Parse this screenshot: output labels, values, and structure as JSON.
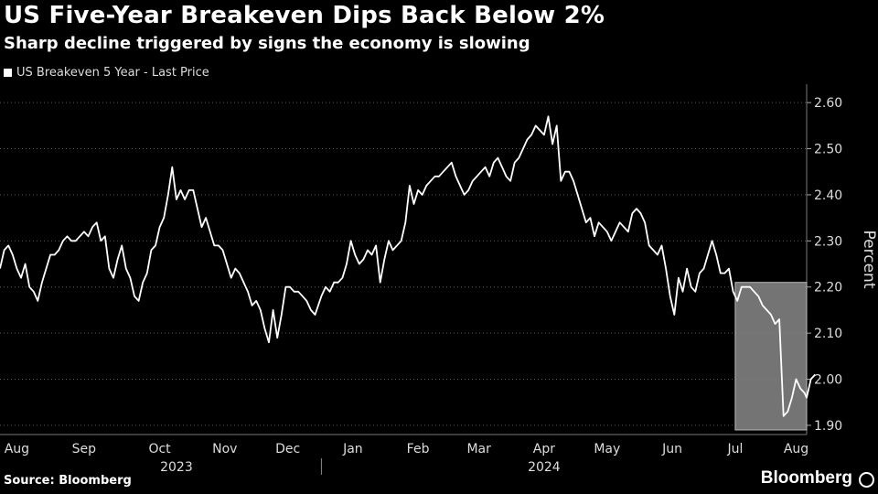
{
  "header": {
    "title": "US Five-Year Breakeven Dips Back Below 2%",
    "subtitle": "Sharp decline triggered by signs the economy is slowing"
  },
  "footer": {
    "source": "Source: Bloomberg",
    "brand": "Bloomberg"
  },
  "colors": {
    "background": "#000000",
    "line": "#ffffff",
    "highlight": "#888888",
    "grid": "#555555"
  },
  "chart_data": {
    "type": "line",
    "title": "US Five-Year Breakeven Dips Back Below 2%",
    "subtitle": "Sharp decline triggered by signs the economy is slowing",
    "ylabel": "Percent",
    "ylim": [
      1.88,
      2.64
    ],
    "yticks": [
      "2.60",
      "2.50",
      "2.40",
      "2.30",
      "2.20",
      "2.10",
      "2.00",
      "1.90"
    ],
    "ytick_values": [
      2.6,
      2.5,
      2.4,
      2.3,
      2.2,
      2.1,
      2.0,
      1.9
    ],
    "xlim": [
      "2023-08-01",
      "2024-08-19"
    ],
    "xticks": [
      {
        "label": "Aug",
        "date": "2023-08-09"
      },
      {
        "label": "Sep",
        "date": "2023-09-10"
      },
      {
        "label": "Oct",
        "date": "2023-10-16"
      },
      {
        "label": "Nov",
        "date": "2023-11-16"
      },
      {
        "label": "Dec",
        "date": "2023-12-16"
      },
      {
        "label": "Jan",
        "date": "2024-01-16"
      },
      {
        "label": "Feb",
        "date": "2024-02-16"
      },
      {
        "label": "Mar",
        "date": "2024-03-16"
      },
      {
        "label": "Apr",
        "date": "2024-04-16"
      },
      {
        "label": "May",
        "date": "2024-05-16"
      },
      {
        "label": "Jun",
        "date": "2024-06-16"
      },
      {
        "label": "Jul",
        "date": "2024-07-16"
      },
      {
        "label": "Aug",
        "date": "2024-08-14"
      }
    ],
    "year_labels": [
      {
        "label": "2023",
        "date": "2023-10-24"
      },
      {
        "label": "2024",
        "date": "2024-04-16"
      }
    ],
    "year_divider_date": "2024-01-01",
    "highlight": {
      "x_start": "2024-07-16",
      "x_end": "2024-08-19",
      "y_start": 1.89,
      "y_end": 2.21
    },
    "grid": true,
    "legend": "top-left",
    "series": [
      {
        "name": "US Breakeven 5 Year - Last Price",
        "points": [
          [
            "2023-08-01",
            2.24
          ],
          [
            "2023-08-03",
            2.28
          ],
          [
            "2023-08-05",
            2.29
          ],
          [
            "2023-08-07",
            2.27
          ],
          [
            "2023-08-09",
            2.24
          ],
          [
            "2023-08-11",
            2.22
          ],
          [
            "2023-08-13",
            2.25
          ],
          [
            "2023-08-15",
            2.2
          ],
          [
            "2023-08-17",
            2.19
          ],
          [
            "2023-08-19",
            2.17
          ],
          [
            "2023-08-21",
            2.21
          ],
          [
            "2023-08-23",
            2.24
          ],
          [
            "2023-08-25",
            2.27
          ],
          [
            "2023-08-27",
            2.27
          ],
          [
            "2023-08-29",
            2.28
          ],
          [
            "2023-08-31",
            2.3
          ],
          [
            "2023-09-02",
            2.31
          ],
          [
            "2023-09-04",
            2.3
          ],
          [
            "2023-09-06",
            2.3
          ],
          [
            "2023-09-08",
            2.31
          ],
          [
            "2023-09-10",
            2.32
          ],
          [
            "2023-09-12",
            2.31
          ],
          [
            "2023-09-14",
            2.33
          ],
          [
            "2023-09-16",
            2.34
          ],
          [
            "2023-09-18",
            2.3
          ],
          [
            "2023-09-20",
            2.31
          ],
          [
            "2023-09-22",
            2.24
          ],
          [
            "2023-09-24",
            2.22
          ],
          [
            "2023-09-26",
            2.26
          ],
          [
            "2023-09-28",
            2.29
          ],
          [
            "2023-09-30",
            2.24
          ],
          [
            "2023-10-02",
            2.22
          ],
          [
            "2023-10-04",
            2.18
          ],
          [
            "2023-10-06",
            2.17
          ],
          [
            "2023-10-08",
            2.21
          ],
          [
            "2023-10-10",
            2.23
          ],
          [
            "2023-10-12",
            2.28
          ],
          [
            "2023-10-14",
            2.29
          ],
          [
            "2023-10-16",
            2.33
          ],
          [
            "2023-10-18",
            2.35
          ],
          [
            "2023-10-20",
            2.4
          ],
          [
            "2023-10-22",
            2.46
          ],
          [
            "2023-10-24",
            2.39
          ],
          [
            "2023-10-26",
            2.41
          ],
          [
            "2023-10-28",
            2.39
          ],
          [
            "2023-10-30",
            2.41
          ],
          [
            "2023-11-01",
            2.41
          ],
          [
            "2023-11-03",
            2.37
          ],
          [
            "2023-11-05",
            2.33
          ],
          [
            "2023-11-07",
            2.35
          ],
          [
            "2023-11-09",
            2.32
          ],
          [
            "2023-11-11",
            2.29
          ],
          [
            "2023-11-13",
            2.29
          ],
          [
            "2023-11-15",
            2.28
          ],
          [
            "2023-11-17",
            2.25
          ],
          [
            "2023-11-19",
            2.22
          ],
          [
            "2023-11-21",
            2.24
          ],
          [
            "2023-11-23",
            2.23
          ],
          [
            "2023-11-25",
            2.21
          ],
          [
            "2023-11-27",
            2.19
          ],
          [
            "2023-11-29",
            2.16
          ],
          [
            "2023-12-01",
            2.17
          ],
          [
            "2023-12-03",
            2.15
          ],
          [
            "2023-12-05",
            2.11
          ],
          [
            "2023-12-07",
            2.08
          ],
          [
            "2023-12-09",
            2.15
          ],
          [
            "2023-12-11",
            2.09
          ],
          [
            "2023-12-13",
            2.14
          ],
          [
            "2023-12-15",
            2.2
          ],
          [
            "2023-12-17",
            2.2
          ],
          [
            "2023-12-19",
            2.19
          ],
          [
            "2023-12-21",
            2.19
          ],
          [
            "2023-12-23",
            2.18
          ],
          [
            "2023-12-25",
            2.17
          ],
          [
            "2023-12-27",
            2.15
          ],
          [
            "2023-12-29",
            2.14
          ],
          [
            "2024-01-01",
            2.18
          ],
          [
            "2024-01-03",
            2.2
          ],
          [
            "2024-01-05",
            2.19
          ],
          [
            "2024-01-07",
            2.21
          ],
          [
            "2024-01-09",
            2.21
          ],
          [
            "2024-01-11",
            2.22
          ],
          [
            "2024-01-13",
            2.25
          ],
          [
            "2024-01-15",
            2.3
          ],
          [
            "2024-01-17",
            2.27
          ],
          [
            "2024-01-19",
            2.25
          ],
          [
            "2024-01-21",
            2.26
          ],
          [
            "2024-01-23",
            2.28
          ],
          [
            "2024-01-25",
            2.27
          ],
          [
            "2024-01-27",
            2.29
          ],
          [
            "2024-01-29",
            2.21
          ],
          [
            "2024-01-31",
            2.26
          ],
          [
            "2024-02-02",
            2.3
          ],
          [
            "2024-02-04",
            2.28
          ],
          [
            "2024-02-06",
            2.29
          ],
          [
            "2024-02-08",
            2.3
          ],
          [
            "2024-02-10",
            2.34
          ],
          [
            "2024-02-12",
            2.42
          ],
          [
            "2024-02-14",
            2.38
          ],
          [
            "2024-02-16",
            2.41
          ],
          [
            "2024-02-18",
            2.4
          ],
          [
            "2024-02-20",
            2.42
          ],
          [
            "2024-02-22",
            2.43
          ],
          [
            "2024-02-24",
            2.44
          ],
          [
            "2024-02-26",
            2.44
          ],
          [
            "2024-02-28",
            2.45
          ],
          [
            "2024-03-01",
            2.46
          ],
          [
            "2024-03-03",
            2.47
          ],
          [
            "2024-03-05",
            2.44
          ],
          [
            "2024-03-07",
            2.42
          ],
          [
            "2024-03-09",
            2.4
          ],
          [
            "2024-03-11",
            2.41
          ],
          [
            "2024-03-13",
            2.43
          ],
          [
            "2024-03-15",
            2.44
          ],
          [
            "2024-03-17",
            2.45
          ],
          [
            "2024-03-19",
            2.46
          ],
          [
            "2024-03-21",
            2.44
          ],
          [
            "2024-03-23",
            2.47
          ],
          [
            "2024-03-25",
            2.48
          ],
          [
            "2024-03-27",
            2.46
          ],
          [
            "2024-03-29",
            2.44
          ],
          [
            "2024-03-31",
            2.43
          ],
          [
            "2024-04-02",
            2.47
          ],
          [
            "2024-04-04",
            2.48
          ],
          [
            "2024-04-06",
            2.5
          ],
          [
            "2024-04-08",
            2.52
          ],
          [
            "2024-04-10",
            2.53
          ],
          [
            "2024-04-12",
            2.55
          ],
          [
            "2024-04-14",
            2.54
          ],
          [
            "2024-04-16",
            2.53
          ],
          [
            "2024-04-18",
            2.57
          ],
          [
            "2024-04-20",
            2.51
          ],
          [
            "2024-04-22",
            2.55
          ],
          [
            "2024-04-24",
            2.43
          ],
          [
            "2024-04-26",
            2.45
          ],
          [
            "2024-04-28",
            2.45
          ],
          [
            "2024-04-30",
            2.43
          ],
          [
            "2024-05-02",
            2.4
          ],
          [
            "2024-05-04",
            2.37
          ],
          [
            "2024-05-06",
            2.34
          ],
          [
            "2024-05-08",
            2.35
          ],
          [
            "2024-05-10",
            2.31
          ],
          [
            "2024-05-12",
            2.34
          ],
          [
            "2024-05-14",
            2.33
          ],
          [
            "2024-05-16",
            2.32
          ],
          [
            "2024-05-18",
            2.3
          ],
          [
            "2024-05-20",
            2.32
          ],
          [
            "2024-05-22",
            2.34
          ],
          [
            "2024-05-24",
            2.33
          ],
          [
            "2024-05-26",
            2.32
          ],
          [
            "2024-05-28",
            2.36
          ],
          [
            "2024-05-30",
            2.37
          ],
          [
            "2024-06-01",
            2.36
          ],
          [
            "2024-06-03",
            2.34
          ],
          [
            "2024-06-05",
            2.29
          ],
          [
            "2024-06-07",
            2.28
          ],
          [
            "2024-06-09",
            2.27
          ],
          [
            "2024-06-11",
            2.29
          ],
          [
            "2024-06-13",
            2.24
          ],
          [
            "2024-06-15",
            2.18
          ],
          [
            "2024-06-17",
            2.14
          ],
          [
            "2024-06-19",
            2.22
          ],
          [
            "2024-06-21",
            2.19
          ],
          [
            "2024-06-23",
            2.24
          ],
          [
            "2024-06-25",
            2.2
          ],
          [
            "2024-06-27",
            2.19
          ],
          [
            "2024-06-29",
            2.23
          ],
          [
            "2024-07-01",
            2.24
          ],
          [
            "2024-07-03",
            2.27
          ],
          [
            "2024-07-05",
            2.3
          ],
          [
            "2024-07-07",
            2.27
          ],
          [
            "2024-07-09",
            2.23
          ],
          [
            "2024-07-11",
            2.23
          ],
          [
            "2024-07-13",
            2.24
          ],
          [
            "2024-07-15",
            2.19
          ],
          [
            "2024-07-17",
            2.17
          ],
          [
            "2024-07-19",
            2.2
          ],
          [
            "2024-07-21",
            2.2
          ],
          [
            "2024-07-23",
            2.2
          ],
          [
            "2024-07-25",
            2.19
          ],
          [
            "2024-07-27",
            2.18
          ],
          [
            "2024-07-29",
            2.16
          ],
          [
            "2024-07-31",
            2.15
          ],
          [
            "2024-08-02",
            2.14
          ],
          [
            "2024-08-04",
            2.12
          ],
          [
            "2024-08-06",
            2.13
          ],
          [
            "2024-08-08",
            1.92
          ],
          [
            "2024-08-10",
            1.93
          ],
          [
            "2024-08-12",
            1.96
          ],
          [
            "2024-08-14",
            2.0
          ],
          [
            "2024-08-16",
            1.98
          ],
          [
            "2024-08-18",
            1.97
          ],
          [
            "2024-08-19",
            1.96
          ],
          [
            "2024-08-21",
            2.0
          ],
          [
            "2024-08-23",
            2.01
          ]
        ]
      }
    ]
  }
}
